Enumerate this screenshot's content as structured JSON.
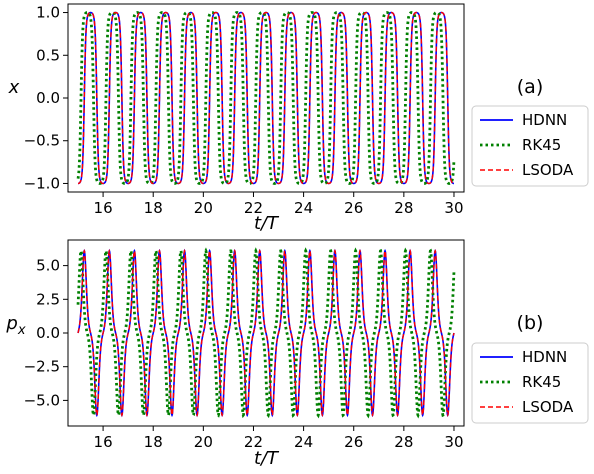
{
  "chart_data": [
    {
      "type": "line",
      "panel_label": "(a)",
      "xlabel": "t/T",
      "ylabel": "x",
      "xlim": [
        14.6,
        30.4
      ],
      "ylim": [
        -1.1,
        1.1
      ],
      "xticks": [
        16,
        18,
        20,
        22,
        24,
        26,
        28,
        30
      ],
      "yticks": [
        1.0,
        0.5,
        0.0,
        -0.5,
        -1.0
      ],
      "ytick_labels": [
        "1.0",
        "0.5",
        "0.0",
        "−0.5",
        "−1.0"
      ],
      "legend_position": "right",
      "t_range": [
        15.0,
        30.0
      ],
      "series": [
        {
          "name": "HDNN",
          "color": "#0000ff",
          "style": "solid",
          "signal": "x",
          "cycles_per_T": 1.0,
          "phase_turns": -0.25
        },
        {
          "name": "RK45",
          "color": "#008000",
          "style": "dotted",
          "signal": "x",
          "cycles_per_T": 1.004,
          "phase_turns": -0.18
        },
        {
          "name": "LSODA",
          "color": "#ff0000",
          "style": "dashed",
          "signal": "x",
          "cycles_per_T": 1.0,
          "phase_turns": -0.25
        }
      ]
    },
    {
      "type": "line",
      "panel_label": "(b)",
      "xlabel": "t/T",
      "ylabel": "p_x",
      "ylabel_main": "p",
      "ylabel_sub": "x",
      "xlim": [
        14.6,
        30.4
      ],
      "ylim": [
        -6.9,
        6.9
      ],
      "xticks": [
        16,
        18,
        20,
        22,
        24,
        26,
        28,
        30
      ],
      "yticks": [
        5.0,
        2.5,
        0.0,
        -2.5,
        -5.0
      ],
      "ytick_labels": [
        "5.0",
        "2.5",
        "0.0",
        "−2.5",
        "−5.0"
      ],
      "legend_position": "right",
      "t_range": [
        15.0,
        30.0
      ],
      "series": [
        {
          "name": "HDNN",
          "color": "#0000ff",
          "style": "solid",
          "signal": "px",
          "cycles_per_T": 1.0,
          "phase_turns": -0.25
        },
        {
          "name": "RK45",
          "color": "#008000",
          "style": "dotted",
          "signal": "px",
          "cycles_per_T": 1.004,
          "phase_turns": -0.18
        },
        {
          "name": "LSODA",
          "color": "#ff0000",
          "style": "dashed",
          "signal": "px",
          "cycles_per_T": 1.0,
          "phase_turns": -0.25
        }
      ]
    }
  ]
}
